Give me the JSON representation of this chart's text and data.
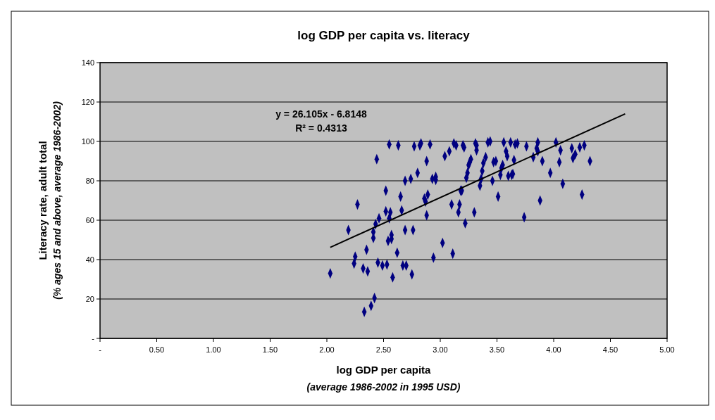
{
  "chart_data": {
    "type": "scatter",
    "title": "log GDP per capita vs. literacy",
    "xlabel": "log GDP per capita\n(average 1986-2002 in 1995 USD)",
    "ylabel": "Literacy rate, adult total\n(% ages 15 and above, average 1986-2002)",
    "annotations": [
      "y = 26.105x - 6.8148\nR² = 0.4313"
    ],
    "xlim": [
      0,
      5
    ],
    "ylim": [
      0,
      140
    ],
    "xticks": [
      {
        "value": 0,
        "label": "-"
      },
      {
        "value": 0.5,
        "label": "0.50"
      },
      {
        "value": 1,
        "label": "1.00"
      },
      {
        "value": 1.5,
        "label": "1.50"
      },
      {
        "value": 2,
        "label": "2.00"
      },
      {
        "value": 2.5,
        "label": "2.50"
      },
      {
        "value": 3,
        "label": "3.00"
      },
      {
        "value": 3.5,
        "label": "3.50"
      },
      {
        "value": 4,
        "label": "4.00"
      },
      {
        "value": 4.5,
        "label": "4.50"
      },
      {
        "value": 5,
        "label": "5.00"
      }
    ],
    "yticks": [
      {
        "value": 0,
        "label": "-"
      },
      20,
      40,
      60,
      80,
      100,
      120,
      140
    ],
    "grid": "y",
    "series": [
      {
        "marker": "diamond",
        "color": "#000080",
        "x": [
          2.03,
          2.19,
          2.24,
          2.25,
          2.27,
          2.32,
          2.33,
          2.35,
          2.36,
          2.39,
          2.41,
          2.41,
          2.42,
          2.43,
          2.44,
          2.45,
          2.46,
          2.49,
          2.52,
          2.52,
          2.53,
          2.54,
          2.55,
          2.55,
          2.56,
          2.57,
          2.57,
          2.58,
          2.62,
          2.63,
          2.65,
          2.66,
          2.67,
          2.69,
          2.69,
          2.7,
          2.74,
          2.75,
          2.76,
          2.77,
          2.8,
          2.82,
          2.83,
          2.86,
          2.87,
          2.88,
          2.88,
          2.89,
          2.91,
          2.93,
          2.94,
          2.96,
          2.96,
          3.02,
          3.04,
          3.08,
          3.1,
          3.11,
          3.12,
          3.14,
          3.16,
          3.17,
          3.18,
          3.19,
          3.2,
          3.21,
          3.22,
          3.23,
          3.24,
          3.25,
          3.26,
          3.27,
          3.3,
          3.31,
          3.32,
          3.32,
          3.35,
          3.36,
          3.37,
          3.38,
          3.4,
          3.42,
          3.44,
          3.46,
          3.47,
          3.49,
          3.51,
          3.53,
          3.54,
          3.55,
          3.56,
          3.58,
          3.59,
          3.6,
          3.62,
          3.63,
          3.64,
          3.65,
          3.66,
          3.68,
          3.74,
          3.76,
          3.82,
          3.85,
          3.86,
          3.86,
          3.88,
          3.9,
          3.97,
          4.02,
          4.05,
          4.06,
          4.08,
          4.16,
          4.17,
          4.19,
          4.23,
          4.25,
          4.27,
          4.32
        ],
        "values": [
          33,
          55,
          38,
          41.5,
          68,
          35.5,
          13.5,
          45,
          34,
          16.5,
          54,
          51,
          20.5,
          58,
          91,
          38.5,
          61,
          37,
          75,
          64.5,
          37.5,
          49.5,
          98.5,
          61,
          64,
          50.5,
          52.5,
          31,
          43.5,
          98,
          72,
          65,
          37,
          80,
          55,
          37,
          81,
          32.5,
          55,
          97.5,
          84,
          98,
          99,
          71,
          69.5,
          90,
          62.5,
          73,
          98.5,
          81,
          41,
          82,
          80.5,
          48.5,
          92.5,
          95,
          68,
          43,
          99,
          98,
          64,
          68,
          75,
          75,
          98,
          97,
          58.5,
          81.5,
          84,
          88,
          89.5,
          91,
          64,
          99,
          98,
          95.5,
          77.5,
          81,
          85,
          89,
          92,
          99.5,
          100,
          80,
          89.5,
          90,
          72,
          83,
          86.5,
          88,
          99.5,
          95,
          92.5,
          82.5,
          99.5,
          83,
          83.5,
          90.5,
          98.5,
          99,
          61.5,
          97.5,
          92,
          96.5,
          99.5,
          95,
          70,
          90,
          84,
          99.5,
          89.5,
          95.5,
          78.5,
          96.5,
          91.5,
          93.5,
          97,
          73,
          98,
          90
        ]
      },
      {
        "type": "line",
        "color": "#000000",
        "x": [
          2.03,
          4.63
        ],
        "values": [
          46.2,
          114
        ]
      }
    ]
  }
}
